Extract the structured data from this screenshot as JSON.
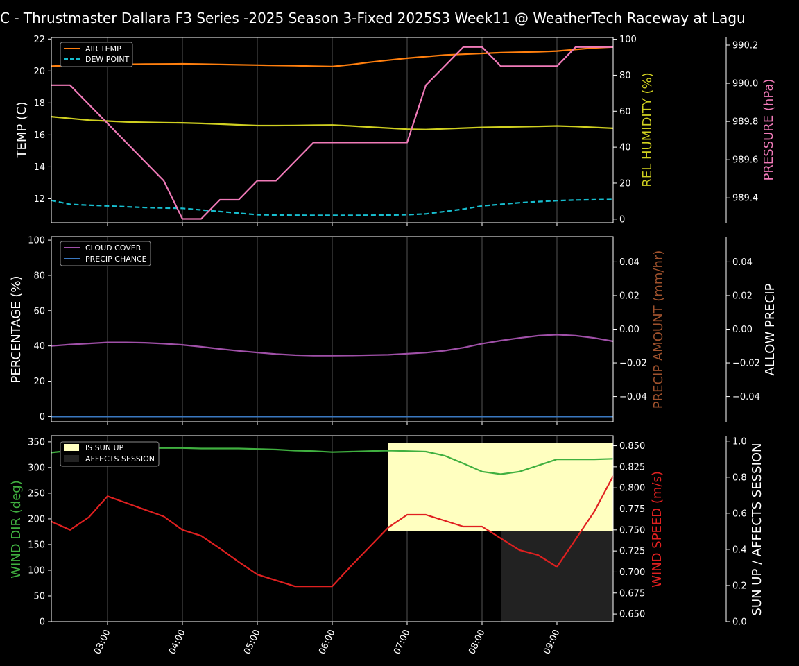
{
  "title": "C - Thrustmaster Dallara F3 Series -2025 Season 3-Fixed 2025S3 Week11 @ WeatherTech Raceway at Lagu",
  "colors": {
    "air_temp": "#ff7f0e",
    "dew_point": "#17becf",
    "rel_humidity": "#d0d020",
    "pressure": "#f07ab8",
    "cloud_cover": "#a050a8",
    "precip_chance": "#3a78c0",
    "precip_amount_label": "#a0522d",
    "wind_dir": "#40b040",
    "wind_speed": "#e02020",
    "sun_up": "#ffffc0",
    "affects_session": "#222222"
  },
  "x_ticks": [
    "03:00",
    "04:00",
    "05:00",
    "06:00",
    "07:00",
    "08:00",
    "09:00"
  ],
  "chart_data": [
    {
      "type": "line",
      "name": "temperature-panel",
      "x_hours": [
        2.25,
        2.5,
        2.75,
        3.0,
        3.25,
        3.5,
        3.75,
        4.0,
        4.25,
        4.5,
        4.75,
        5.0,
        5.25,
        5.5,
        5.75,
        6.0,
        6.25,
        6.5,
        6.75,
        7.0,
        7.25,
        7.5,
        7.75,
        8.0,
        8.25,
        8.5,
        8.75,
        9.0,
        9.25,
        9.5,
        9.75
      ],
      "xlim": [
        2.25,
        9.75
      ],
      "series": [
        {
          "name": "AIR TEMP",
          "axis": "TEMP (C)",
          "ylim": [
            10.5,
            22.1
          ],
          "values": [
            20.3,
            20.35,
            20.38,
            20.4,
            20.42,
            20.43,
            20.44,
            20.45,
            20.43,
            20.41,
            20.39,
            20.37,
            20.35,
            20.33,
            20.3,
            20.28,
            20.4,
            20.55,
            20.68,
            20.8,
            20.9,
            21.0,
            21.05,
            21.1,
            21.15,
            21.18,
            21.2,
            21.25,
            21.35,
            21.45,
            21.5
          ]
        },
        {
          "name": "DEW POINT",
          "axis": "TEMP (C)",
          "ylim": [
            10.5,
            22.1
          ],
          "values": [
            11.9,
            11.65,
            11.6,
            11.55,
            11.5,
            11.45,
            11.42,
            11.4,
            11.3,
            11.2,
            11.1,
            11.0,
            10.98,
            10.97,
            10.96,
            10.96,
            10.96,
            10.97,
            10.98,
            11.0,
            11.05,
            11.2,
            11.35,
            11.55,
            11.65,
            11.75,
            11.82,
            11.88,
            11.92,
            11.94,
            11.96
          ]
        },
        {
          "name": "REL HUMIDITY",
          "axis": "REL HUMIDITY (%)",
          "ylim": [
            -2,
            101
          ],
          "values": [
            57,
            56,
            55,
            54.5,
            54,
            53.8,
            53.6,
            53.5,
            53.2,
            52.8,
            52.4,
            52,
            52,
            52.1,
            52.2,
            52.3,
            51.8,
            51.2,
            50.6,
            50,
            49.8,
            50.2,
            50.6,
            51,
            51.2,
            51.4,
            51.6,
            51.8,
            51.5,
            51.0,
            50.5
          ]
        },
        {
          "name": "PRESSURE",
          "axis": "PRESSURE (hPa)",
          "ylim": [
            989.27,
            990.24
          ],
          "values": [
            989.99,
            989.99,
            989.89,
            989.79,
            989.69,
            989.59,
            989.49,
            989.29,
            989.29,
            989.39,
            989.39,
            989.49,
            989.49,
            989.59,
            989.69,
            989.69,
            989.69,
            989.69,
            989.69,
            989.69,
            989.99,
            990.09,
            990.19,
            990.19,
            990.09,
            990.09,
            990.09,
            990.09,
            990.19,
            990.19,
            990.19
          ]
        }
      ],
      "legend": [
        "AIR TEMP",
        "DEW POINT"
      ],
      "legend_position": "top-left",
      "ylabels": [
        "TEMP (C)",
        "REL HUMIDITY (%)",
        "PRESSURE (hPa)"
      ],
      "yticks": {
        "temp": [
          "12",
          "14",
          "16",
          "18",
          "20",
          "22"
        ],
        "humidity": [
          "0",
          "20",
          "40",
          "60",
          "80",
          "100"
        ],
        "pressure": [
          "989.4",
          "989.6",
          "989.8",
          "990.0",
          "990.2"
        ]
      }
    },
    {
      "type": "line",
      "name": "precipitation-panel",
      "x_hours": [
        2.25,
        2.5,
        2.75,
        3.0,
        3.25,
        3.5,
        3.75,
        4.0,
        4.25,
        4.5,
        4.75,
        5.0,
        5.25,
        5.5,
        5.75,
        6.0,
        6.25,
        6.5,
        6.75,
        7.0,
        7.25,
        7.5,
        7.75,
        8.0,
        8.25,
        8.5,
        8.75,
        9.0,
        9.25,
        9.5,
        9.75
      ],
      "xlim": [
        2.25,
        9.75
      ],
      "series": [
        {
          "name": "CLOUD COVER",
          "axis": "PERCENTAGE (%)",
          "ylim": [
            -3,
            102
          ],
          "values": [
            40,
            40.8,
            41.4,
            42,
            42,
            41.8,
            41.3,
            40.6,
            39.5,
            38.3,
            37.2,
            36.3,
            35.4,
            34.8,
            34.5,
            34.5,
            34.6,
            34.8,
            35,
            35.6,
            36.2,
            37.3,
            39,
            41.3,
            43,
            44.5,
            45.8,
            46.4,
            45.8,
            44.5,
            42.6
          ]
        },
        {
          "name": "PRECIP CHANCE",
          "axis": "PERCENTAGE (%)",
          "ylim": [
            -3,
            102
          ],
          "values": [
            0,
            0,
            0,
            0,
            0,
            0,
            0,
            0,
            0,
            0,
            0,
            0,
            0,
            0,
            0,
            0,
            0,
            0,
            0,
            0,
            0,
            0,
            0,
            0,
            0,
            0,
            0,
            0,
            0,
            0,
            0
          ]
        }
      ],
      "legend": [
        "CLOUD COVER",
        "PRECIP CHANCE"
      ],
      "legend_position": "top-left",
      "ylabels": [
        "PERCENTAGE (%)",
        "PRECIP AMOUNT (mm/hr)",
        "ALLOW PRECIP"
      ],
      "yticks": {
        "percentage": [
          "0",
          "20",
          "40",
          "60",
          "80",
          "100"
        ],
        "precip_amount": [
          "−0.04",
          "−0.02",
          "0.00",
          "0.02",
          "0.04"
        ],
        "allow_precip": [
          "−0.04",
          "−0.02",
          "0.00",
          "0.02",
          "0.04"
        ]
      }
    },
    {
      "type": "line",
      "name": "wind-panel",
      "x_hours": [
        2.25,
        2.5,
        2.75,
        3.0,
        3.25,
        3.5,
        3.75,
        4.0,
        4.25,
        4.5,
        4.75,
        5.0,
        5.25,
        5.5,
        5.75,
        6.0,
        6.25,
        6.5,
        6.75,
        7.0,
        7.25,
        7.5,
        7.75,
        8.0,
        8.25,
        8.5,
        8.75,
        9.0,
        9.25,
        9.5,
        9.75
      ],
      "xlim": [
        2.25,
        9.75
      ],
      "series": [
        {
          "name": "WIND DIR",
          "axis": "WIND DIR (deg)",
          "ylim": [
            0,
            362
          ],
          "values": [
            329,
            333,
            337,
            338,
            338,
            338,
            338,
            338,
            337,
            337,
            337,
            336,
            335,
            333,
            332,
            330,
            331,
            332,
            333,
            332,
            331,
            323,
            308,
            292,
            287,
            292,
            304,
            316,
            316,
            316,
            317
          ]
        },
        {
          "name": "WIND SPEED",
          "axis": "WIND SPEED (m/s)",
          "ylim": [
            0.641,
            0.862
          ],
          "values": [
            0.76,
            0.75,
            0.765,
            0.79,
            0.782,
            0.774,
            0.766,
            0.75,
            0.743,
            0.728,
            0.712,
            0.697,
            0.69,
            0.683,
            0.683,
            0.683,
            0.707,
            0.73,
            0.753,
            0.768,
            0.768,
            0.761,
            0.754,
            0.754,
            0.74,
            0.726,
            0.72,
            0.706,
            0.739,
            0.772,
            0.814
          ]
        }
      ],
      "spans": [
        {
          "name": "IS SUN UP",
          "x": [
            6.75,
            9.75
          ],
          "y": [
            0.5,
            0.99
          ]
        },
        {
          "name": "AFFECTS SESSION",
          "x": [
            8.25,
            9.75
          ],
          "y": [
            0,
            0.5
          ]
        }
      ],
      "legend": [
        "IS SUN UP",
        "AFFECTS SESSION"
      ],
      "legend_position": "top-left",
      "ylabels": [
        "WIND DIR (deg)",
        "WIND SPEED (m/s)",
        "SUN UP / AFFECTS SESSION"
      ],
      "yticks": {
        "wind_dir": [
          "0",
          "50",
          "100",
          "150",
          "200",
          "250",
          "300",
          "350"
        ],
        "wind_speed": [
          "0.650",
          "0.675",
          "0.700",
          "0.725",
          "0.750",
          "0.775",
          "0.800",
          "0.825",
          "0.850"
        ],
        "sun_up": [
          "0.0",
          "0.2",
          "0.4",
          "0.6",
          "0.8",
          "1.0"
        ]
      }
    }
  ]
}
